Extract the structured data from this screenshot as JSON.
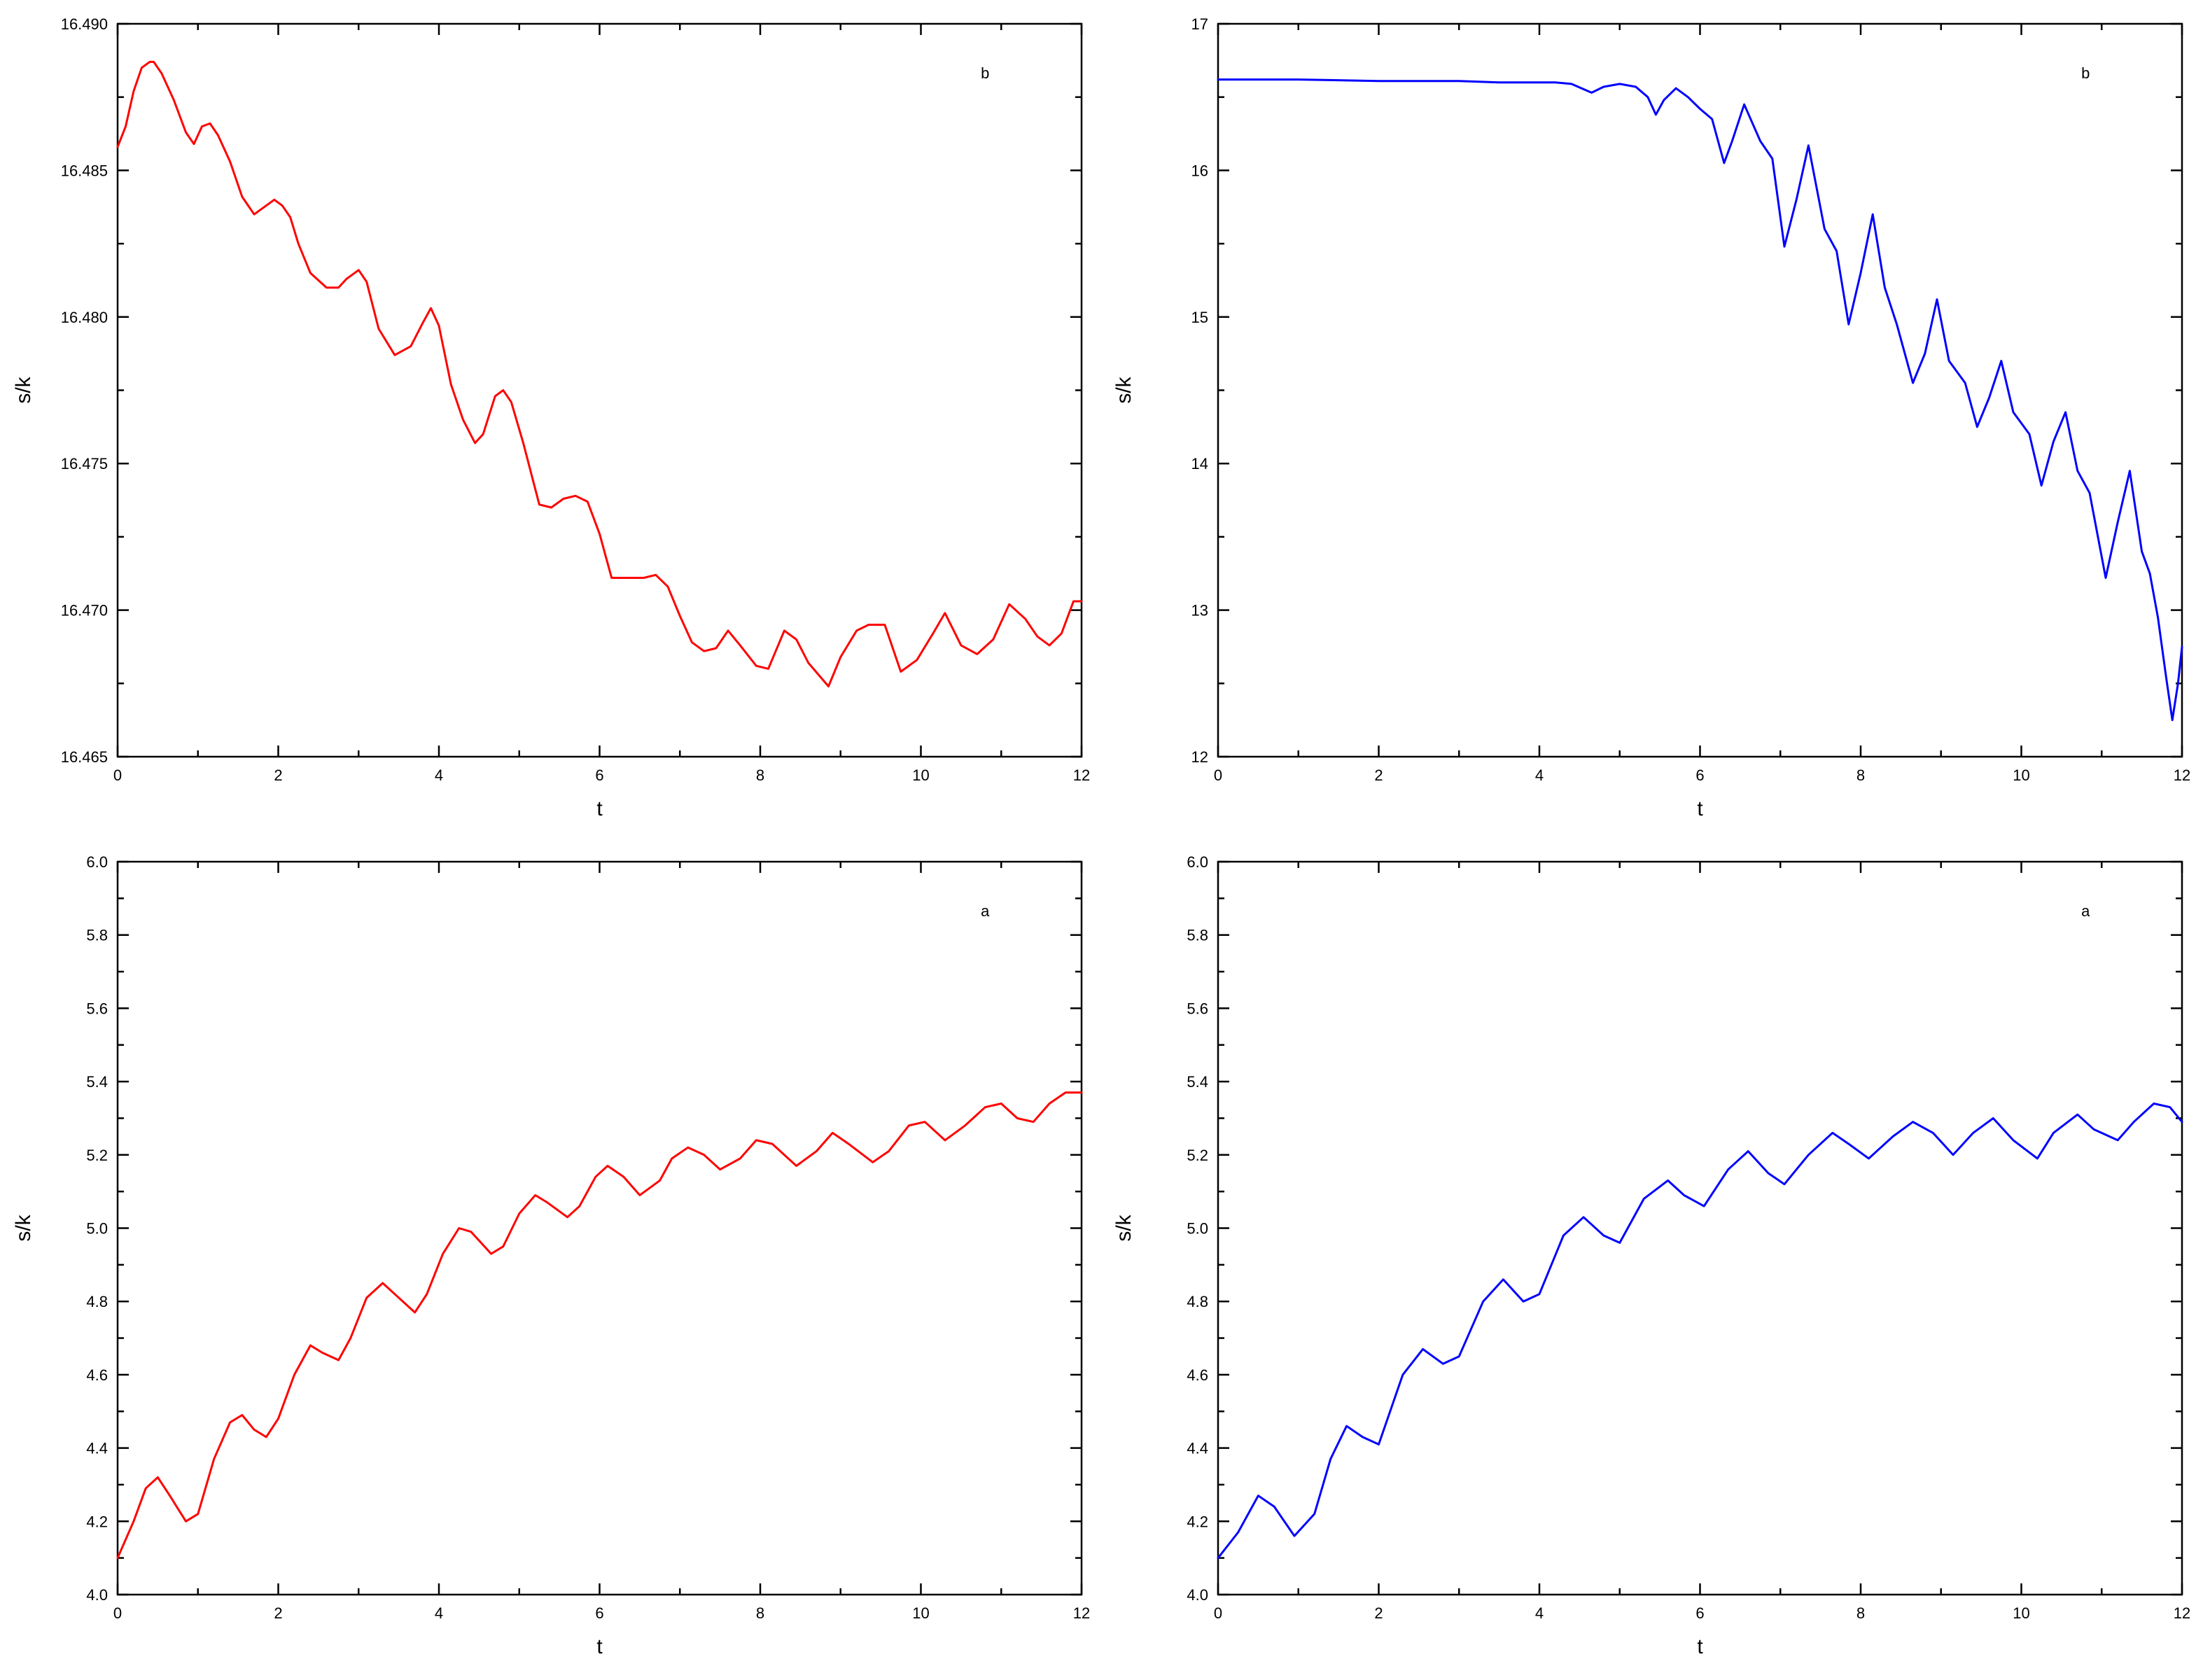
{
  "colors": {
    "red_series": "#ff0000",
    "blue_series": "#0000ff",
    "axes": "#000000",
    "background": "#ffffff"
  },
  "chart_data": [
    {
      "type": "line",
      "panel": "top-left",
      "title": "",
      "annotation": "b",
      "annotation_position": "top-right",
      "xlabel": "t",
      "ylabel": "s/k",
      "xlim": [
        0,
        12
      ],
      "ylim": [
        16.465,
        16.49
      ],
      "xticks": [
        "0",
        "2",
        "4",
        "6",
        "8",
        "10",
        "12"
      ],
      "yticks": [
        "16.465",
        "16.470",
        "16.475",
        "16.480",
        "16.485",
        "16.490"
      ],
      "grid": false,
      "color": "#ff0000",
      "series": [
        {
          "x": [
            0,
            0.1,
            0.2,
            0.3,
            0.4,
            0.45,
            0.55,
            0.7,
            0.85,
            0.95,
            1.05,
            1.15,
            1.25,
            1.4,
            1.55,
            1.7,
            1.85,
            1.95,
            2.05,
            2.15,
            2.25,
            2.4,
            2.6,
            2.75,
            2.85,
            3.0,
            3.1,
            3.25,
            3.45,
            3.65,
            3.8,
            3.9,
            4.0,
            4.15,
            4.3,
            4.45,
            4.55,
            4.7,
            4.8,
            4.9,
            5.05,
            5.25,
            5.4,
            5.55,
            5.7,
            5.85,
            6.0,
            6.15,
            6.3,
            6.45,
            6.55,
            6.7,
            6.85,
            7.0,
            7.15,
            7.3,
            7.45,
            7.6,
            7.75,
            7.95,
            8.1,
            8.3,
            8.45,
            8.6,
            8.85,
            9.0,
            9.2,
            9.35,
            9.55,
            9.75,
            9.95,
            10.15,
            10.3,
            10.5,
            10.7,
            10.9,
            11.1,
            11.3,
            11.45,
            11.6,
            11.75,
            11.9,
            12.0
          ],
          "y": [
            16.4858,
            16.4865,
            16.4877,
            16.4885,
            16.4887,
            16.4887,
            16.4883,
            16.4874,
            16.4863,
            16.4859,
            16.4865,
            16.4866,
            16.4862,
            16.4853,
            16.4841,
            16.4835,
            16.4838,
            16.484,
            16.4838,
            16.4834,
            16.4825,
            16.4815,
            16.481,
            16.481,
            16.4813,
            16.4816,
            16.4812,
            16.4796,
            16.4787,
            16.479,
            16.4798,
            16.4803,
            16.4797,
            16.4777,
            16.4765,
            16.4757,
            16.476,
            16.4773,
            16.4775,
            16.4771,
            16.4757,
            16.4736,
            16.4735,
            16.4738,
            16.4739,
            16.4737,
            16.4726,
            16.4711,
            16.4711,
            16.4711,
            16.4711,
            16.4712,
            16.4708,
            16.4698,
            16.4689,
            16.4686,
            16.4687,
            16.4693,
            16.4688,
            16.4681,
            16.468,
            16.4693,
            16.469,
            16.4682,
            16.4674,
            16.4684,
            16.4693,
            16.4695,
            16.4695,
            16.4679,
            16.4683,
            16.4692,
            16.4699,
            16.4688,
            16.4685,
            16.469,
            16.4702,
            16.4697,
            16.4691,
            16.4688,
            16.4692,
            16.4703,
            16.4703
          ]
        }
      ]
    },
    {
      "type": "line",
      "panel": "top-right",
      "title": "",
      "annotation": "b",
      "annotation_position": "top-right",
      "xlabel": "t",
      "ylabel": "s/k",
      "xlim": [
        0,
        12
      ],
      "ylim": [
        12,
        17
      ],
      "xticks": [
        "0",
        "2",
        "4",
        "6",
        "8",
        "10",
        "12"
      ],
      "yticks": [
        "12",
        "13",
        "14",
        "15",
        "16",
        "17"
      ],
      "grid": false,
      "color": "#0000ff",
      "series": [
        {
          "x": [
            0,
            1.0,
            2.0,
            3.0,
            3.5,
            4.0,
            4.2,
            4.4,
            4.65,
            4.8,
            5.0,
            5.2,
            5.35,
            5.45,
            5.55,
            5.7,
            5.85,
            6.0,
            6.15,
            6.3,
            6.4,
            6.55,
            6.75,
            6.9,
            7.05,
            7.2,
            7.35,
            7.55,
            7.7,
            7.85,
            8.0,
            8.15,
            8.3,
            8.45,
            8.65,
            8.8,
            8.95,
            9.1,
            9.3,
            9.45,
            9.6,
            9.75,
            9.9,
            10.1,
            10.25,
            10.4,
            10.55,
            10.7,
            10.85,
            11.05,
            11.2,
            11.35,
            11.5,
            11.6,
            11.7,
            11.8,
            11.88,
            11.95,
            12.0
          ],
          "y": [
            16.62,
            16.62,
            16.61,
            16.61,
            16.6,
            16.6,
            16.6,
            16.59,
            16.53,
            16.57,
            16.59,
            16.57,
            16.5,
            16.38,
            16.48,
            16.56,
            16.5,
            16.42,
            16.35,
            16.05,
            16.2,
            16.45,
            16.2,
            16.08,
            15.48,
            15.8,
            16.17,
            15.6,
            15.45,
            14.95,
            15.3,
            15.7,
            15.2,
            14.95,
            14.55,
            14.75,
            15.12,
            14.7,
            14.55,
            14.25,
            14.45,
            14.7,
            14.35,
            14.2,
            13.85,
            14.15,
            14.35,
            13.95,
            13.8,
            13.22,
            13.6,
            13.95,
            13.4,
            13.25,
            12.95,
            12.55,
            12.25,
            12.5,
            12.75
          ]
        }
      ]
    },
    {
      "type": "line",
      "panel": "bottom-left",
      "title": "",
      "annotation": "a",
      "annotation_position": "top-right",
      "xlabel": "t",
      "ylabel": "s/k",
      "xlim": [
        0,
        12
      ],
      "ylim": [
        4.0,
        6.0
      ],
      "xticks": [
        "0",
        "2",
        "4",
        "6",
        "8",
        "10",
        "12"
      ],
      "yticks": [
        "4.0",
        "4.2",
        "4.4",
        "4.6",
        "4.8",
        "5.0",
        "5.2",
        "5.4",
        "5.6",
        "5.8",
        "6.0"
      ],
      "grid": false,
      "color": "#ff0000",
      "series": [
        {
          "x": [
            0,
            0.2,
            0.35,
            0.5,
            0.65,
            0.85,
            1.0,
            1.2,
            1.4,
            1.55,
            1.7,
            1.85,
            2.0,
            2.2,
            2.4,
            2.55,
            2.75,
            2.9,
            3.1,
            3.3,
            3.45,
            3.7,
            3.85,
            4.05,
            4.25,
            4.4,
            4.65,
            4.8,
            5.0,
            5.2,
            5.35,
            5.6,
            5.75,
            5.95,
            6.1,
            6.3,
            6.5,
            6.75,
            6.9,
            7.1,
            7.3,
            7.5,
            7.75,
            7.95,
            8.15,
            8.45,
            8.7,
            8.9,
            9.1,
            9.4,
            9.6,
            9.85,
            10.05,
            10.3,
            10.55,
            10.8,
            11.0,
            11.2,
            11.4,
            11.6,
            11.8,
            12.0
          ],
          "y": [
            4.1,
            4.2,
            4.29,
            4.32,
            4.27,
            4.2,
            4.22,
            4.37,
            4.47,
            4.49,
            4.45,
            4.43,
            4.48,
            4.6,
            4.68,
            4.66,
            4.64,
            4.7,
            4.81,
            4.85,
            4.82,
            4.77,
            4.82,
            4.93,
            5.0,
            4.99,
            4.93,
            4.95,
            5.04,
            5.09,
            5.07,
            5.03,
            5.06,
            5.14,
            5.17,
            5.14,
            5.09,
            5.13,
            5.19,
            5.22,
            5.2,
            5.16,
            5.19,
            5.24,
            5.23,
            5.17,
            5.21,
            5.26,
            5.23,
            5.18,
            5.21,
            5.28,
            5.29,
            5.24,
            5.28,
            5.33,
            5.34,
            5.3,
            5.29,
            5.34,
            5.37,
            5.37
          ]
        }
      ]
    },
    {
      "type": "line",
      "panel": "bottom-right",
      "title": "",
      "annotation": "a",
      "annotation_position": "top-right",
      "xlabel": "t",
      "ylabel": "s/k",
      "xlim": [
        0,
        12
      ],
      "ylim": [
        4.0,
        6.0
      ],
      "xticks": [
        "0",
        "2",
        "4",
        "6",
        "8",
        "10",
        "12"
      ],
      "yticks": [
        "4.0",
        "4.2",
        "4.4",
        "4.6",
        "4.8",
        "5.0",
        "5.2",
        "5.4",
        "5.6",
        "5.8",
        "6.0"
      ],
      "grid": false,
      "color": "#0000ff",
      "series": [
        {
          "x": [
            0,
            0.25,
            0.5,
            0.7,
            0.95,
            1.2,
            1.4,
            1.6,
            1.8,
            2.0,
            2.3,
            2.55,
            2.8,
            3.0,
            3.3,
            3.55,
            3.8,
            4.0,
            4.3,
            4.55,
            4.8,
            5.0,
            5.3,
            5.6,
            5.8,
            6.05,
            6.35,
            6.6,
            6.85,
            7.05,
            7.35,
            7.65,
            7.85,
            8.1,
            8.4,
            8.65,
            8.9,
            9.15,
            9.4,
            9.65,
            9.9,
            10.2,
            10.4,
            10.7,
            10.9,
            11.2,
            11.4,
            11.65,
            11.85,
            12.0
          ],
          "y": [
            4.1,
            4.17,
            4.27,
            4.24,
            4.16,
            4.22,
            4.37,
            4.46,
            4.43,
            4.41,
            4.6,
            4.67,
            4.63,
            4.65,
            4.8,
            4.86,
            4.8,
            4.82,
            4.98,
            5.03,
            4.98,
            4.96,
            5.08,
            5.13,
            5.09,
            5.06,
            5.16,
            5.21,
            5.15,
            5.12,
            5.2,
            5.26,
            5.23,
            5.19,
            5.25,
            5.29,
            5.26,
            5.2,
            5.26,
            5.3,
            5.24,
            5.19,
            5.26,
            5.31,
            5.27,
            5.24,
            5.29,
            5.34,
            5.33,
            5.29
          ]
        }
      ]
    }
  ]
}
